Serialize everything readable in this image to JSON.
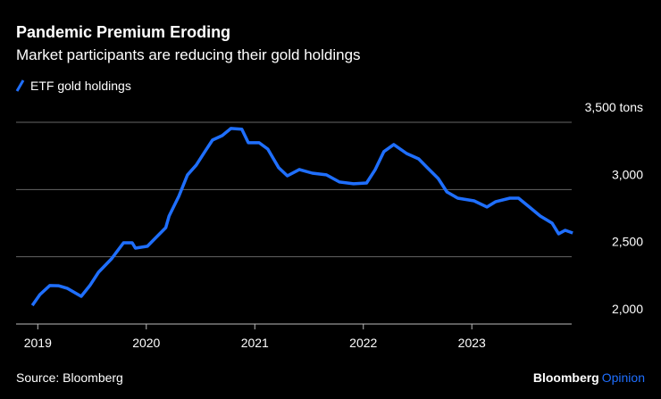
{
  "chart_data": {
    "type": "line",
    "title": "Pandemic Premium Eroding",
    "subtitle": "Market participants are reducing their gold holdings",
    "source": "Source: Bloomberg",
    "branding": [
      "Bloomberg",
      "Opinion"
    ],
    "x": [
      2018.95,
      2019.02,
      2019.11,
      2019.19,
      2019.27,
      2019.4,
      2019.48,
      2019.56,
      2019.68,
      2019.79,
      2019.87,
      2019.9,
      2020.01,
      2020.09,
      2020.18,
      2020.21,
      2020.3,
      2020.38,
      2020.46,
      2020.54,
      2020.61,
      2020.7,
      2020.78,
      2020.88,
      2020.94,
      2021.04,
      2021.12,
      2021.22,
      2021.3,
      2021.41,
      2021.53,
      2021.66,
      2021.78,
      2021.91,
      2022.03,
      2022.11,
      2022.19,
      2022.28,
      2022.4,
      2022.51,
      2022.59,
      2022.69,
      2022.77,
      2022.87,
      2023.02,
      2023.14,
      2023.22,
      2023.35,
      2023.43,
      2023.53,
      2023.63,
      2023.74,
      2023.8,
      2023.86,
      2023.93
    ],
    "series": [
      {
        "name": "ETF gold holdings",
        "color": "#1f6fff",
        "values": [
          2139,
          2219,
          2286,
          2285,
          2266,
          2206,
          2286,
          2385,
          2485,
          2604,
          2604,
          2564,
          2578,
          2644,
          2717,
          2803,
          2950,
          3109,
          3182,
          3282,
          3368,
          3401,
          3454,
          3448,
          3348,
          3348,
          3301,
          3162,
          3102,
          3149,
          3122,
          3109,
          3056,
          3043,
          3049,
          3149,
          3282,
          3335,
          3268,
          3228,
          3162,
          3082,
          2982,
          2936,
          2916,
          2870,
          2910,
          2936,
          2936,
          2870,
          2803,
          2750,
          2671,
          2697,
          2677
        ]
      }
    ],
    "xlim": [
      2018.8,
      2023.92
    ],
    "xticks": [
      2019,
      2020,
      2021,
      2022,
      2023
    ],
    "ylim": [
      2000,
      3500
    ],
    "yticks": [
      {
        "value": 2000,
        "label": "2,000"
      },
      {
        "value": 2500,
        "label": "2,500"
      },
      {
        "value": 3000,
        "label": "3,000"
      },
      {
        "value": 3500,
        "label": "3,500 tons"
      }
    ],
    "grid": true
  }
}
